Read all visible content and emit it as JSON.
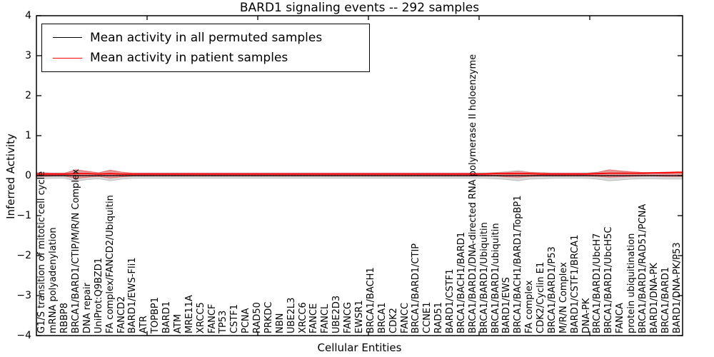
{
  "title": "BARD1 signaling events -- 292 samples",
  "axes": {
    "ylabel": "Inferred Activity",
    "xlabel": "Cellular Entities",
    "ytick_labels": [
      "4",
      "3",
      "2",
      "1",
      "0",
      "−1",
      "−2",
      "−3",
      "−4"
    ]
  },
  "legend": {
    "items": [
      {
        "label": "Mean activity in all permuted samples",
        "color": "#000000"
      },
      {
        "label": "Mean activity in patient samples",
        "color": "#ff0000"
      }
    ]
  },
  "chart_data": {
    "type": "line",
    "title": "BARD1 signaling events -- 292 samples",
    "xlabel": "Cellular Entities",
    "ylabel": "Inferred Activity",
    "ylim": [
      -4,
      4
    ],
    "grid": false,
    "legend_position": "upper left",
    "zero_reference_line": 0,
    "colors": {
      "permuted": "#000000",
      "patient": "#ff0000",
      "permuted_band": "rgba(130,130,130,0.32)",
      "patient_band": "rgba(255,0,0,0.28)"
    },
    "entities": [
      "G1/S transition of mitotic cell cycle",
      "mRNA polyadenylation",
      "RBBP8",
      "BRCA1/BARD1/CTIP/M/R/N Complex",
      "DNA repair",
      "UniProt:Q9BZD1",
      "FA complex/FANCD2/Ubiquitin",
      "FANCD2",
      "BARD1/EWS-Fli1",
      "ATR",
      "TOPBP1",
      "BARD1",
      "ATM",
      "MRE11A",
      "XRCC5",
      "FANCF",
      "TP53",
      "CSTF1",
      "PCNA",
      "RAD50",
      "PRKDC",
      "NBN",
      "UBE2L3",
      "XRCC6",
      "FANCE",
      "FANCL",
      "UBE2D3",
      "FANCG",
      "EWSR1",
      "BRCA1/BACH1",
      "BRCA1",
      "CDK2",
      "FANCC",
      "BRCA1/BARD1/CTIP",
      "CCNE1",
      "RAD51",
      "BARD1/CSTF1",
      "BRCA1/BACH1/BARD1",
      "BRCA1/BARD1/DNA-directed RNA polymerase II holoenzyme",
      "BRCA1/BARD1/Ubiquitin",
      "BRCA1/BARD1/ubiquitin",
      "BARD1/EWS",
      "BRCA1/BACH1/BARD1/TopBP1",
      "FA complex",
      "CDK2/Cyclin E1",
      "BRCA1/BARD1/P53",
      "M/R/N Complex",
      "BARD1/CSTF1/BRCA1",
      "DNA-PK",
      "BRCA1/BARD1/UbcH7",
      "BRCA1/BARD1/UbcH5C",
      "FANCA",
      "protein ubiquitination",
      "BRCA1/BARD1/RAD51/PCNA",
      "BARD1/DNA-PK",
      "BRCA1/BARD1",
      "BARD1/DNA-PK/P53"
    ],
    "series": [
      {
        "name": "Mean activity in all permuted samples",
        "color": "#000000",
        "values": [
          0,
          0,
          0,
          0,
          0,
          0,
          0,
          0,
          0,
          0,
          0,
          0,
          0,
          0,
          0,
          0,
          0,
          0,
          0,
          0,
          0,
          0,
          0,
          0,
          0,
          0,
          0,
          0,
          0,
          0,
          0,
          0,
          0,
          0,
          0,
          0,
          0,
          0,
          0,
          0,
          0,
          0,
          0,
          0,
          0,
          0,
          0,
          0,
          0,
          0,
          0,
          0,
          0,
          0,
          0,
          0,
          0
        ]
      },
      {
        "name": "Mean activity in patient samples",
        "color": "#ff0000",
        "values": [
          0.04,
          0.04,
          0.04,
          0.05,
          0.05,
          0.04,
          0.05,
          0.04,
          0.04,
          0.04,
          0.04,
          0.04,
          0.04,
          0.04,
          0.04,
          0.04,
          0.04,
          0.04,
          0.04,
          0.04,
          0.04,
          0.04,
          0.04,
          0.04,
          0.04,
          0.04,
          0.04,
          0.04,
          0.04,
          0.04,
          0.04,
          0.04,
          0.04,
          0.04,
          0.04,
          0.04,
          0.04,
          0.04,
          0.04,
          0.04,
          0.05,
          0.05,
          0.05,
          0.05,
          0.04,
          0.04,
          0.04,
          0.04,
          0.04,
          0.05,
          0.06,
          0.06,
          0.06,
          0.06,
          0.07,
          0.07,
          0.08
        ]
      }
    ],
    "bands": [
      {
        "name": "permuted samples distribution",
        "symmetric": true,
        "hi": [
          0.08,
          0.07,
          0.07,
          0.14,
          0.1,
          0.08,
          0.13,
          0.09,
          0.07,
          0.07,
          0.07,
          0.07,
          0.07,
          0.07,
          0.07,
          0.07,
          0.07,
          0.07,
          0.07,
          0.07,
          0.07,
          0.07,
          0.07,
          0.07,
          0.07,
          0.07,
          0.07,
          0.07,
          0.07,
          0.07,
          0.07,
          0.07,
          0.07,
          0.07,
          0.07,
          0.07,
          0.07,
          0.07,
          0.07,
          0.07,
          0.08,
          0.1,
          0.13,
          0.09,
          0.08,
          0.07,
          0.07,
          0.07,
          0.07,
          0.09,
          0.13,
          0.11,
          0.09,
          0.08,
          0.08,
          0.09,
          0.09
        ]
      },
      {
        "name": "patient samples distribution",
        "symmetric": false,
        "hi": [
          0.07,
          0.06,
          0.06,
          0.15,
          0.11,
          0.07,
          0.14,
          0.09,
          0.06,
          0.06,
          0.06,
          0.06,
          0.06,
          0.06,
          0.06,
          0.06,
          0.06,
          0.06,
          0.06,
          0.06,
          0.06,
          0.06,
          0.06,
          0.06,
          0.06,
          0.06,
          0.06,
          0.06,
          0.06,
          0.06,
          0.06,
          0.06,
          0.06,
          0.06,
          0.06,
          0.06,
          0.06,
          0.06,
          0.06,
          0.06,
          0.07,
          0.08,
          0.1,
          0.08,
          0.07,
          0.06,
          0.06,
          0.06,
          0.06,
          0.08,
          0.15,
          0.12,
          0.1,
          0.08,
          0.08,
          0.09,
          0.1
        ],
        "lo": [
          -0.02,
          -0.01,
          -0.01,
          -0.07,
          -0.04,
          -0.02,
          -0.06,
          -0.03,
          -0.01,
          -0.01,
          -0.01,
          -0.01,
          -0.01,
          -0.01,
          -0.01,
          -0.01,
          -0.01,
          -0.01,
          -0.01,
          -0.01,
          -0.01,
          -0.01,
          -0.01,
          -0.01,
          -0.01,
          -0.01,
          -0.01,
          -0.01,
          -0.01,
          -0.01,
          -0.01,
          -0.01,
          -0.01,
          -0.01,
          -0.01,
          -0.01,
          -0.01,
          -0.01,
          -0.01,
          -0.01,
          -0.01,
          -0.03,
          -0.04,
          -0.02,
          -0.01,
          -0.01,
          -0.01,
          -0.01,
          -0.01,
          -0.02,
          -0.04,
          -0.03,
          -0.02,
          -0.01,
          -0.01,
          -0.02,
          -0.02
        ]
      }
    ]
  }
}
